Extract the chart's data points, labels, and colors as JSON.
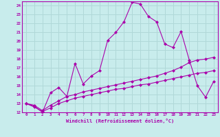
{
  "xlabel": "Windchill (Refroidissement éolien,°C)",
  "bg_color": "#c8ecec",
  "grid_color": "#b0d8d8",
  "line_color": "#aa00aa",
  "spine_color": "#aa00aa",
  "xlim": [
    -0.5,
    23.5
  ],
  "ylim": [
    12,
    24.5
  ],
  "xticks": [
    0,
    1,
    2,
    3,
    4,
    5,
    6,
    7,
    8,
    9,
    10,
    11,
    12,
    13,
    14,
    15,
    16,
    17,
    18,
    19,
    20,
    21,
    22,
    23
  ],
  "yticks": [
    12,
    13,
    14,
    15,
    16,
    17,
    18,
    19,
    20,
    21,
    22,
    23,
    24
  ],
  "line1_x": [
    0,
    1,
    2,
    3,
    4,
    5,
    6,
    7,
    8,
    9,
    10,
    11,
    12,
    13,
    14,
    15,
    16,
    17,
    18,
    19,
    20,
    21,
    22,
    23
  ],
  "line1_y": [
    13.0,
    12.7,
    12.0,
    14.2,
    14.8,
    13.8,
    17.5,
    15.2,
    16.1,
    16.7,
    20.1,
    21.0,
    22.2,
    24.4,
    24.2,
    22.8,
    22.2,
    19.7,
    19.3,
    21.1,
    17.9,
    15.0,
    13.7,
    15.5
  ],
  "line2_x": [
    0,
    1,
    2,
    3,
    4,
    5,
    6,
    7,
    8,
    9,
    10,
    11,
    12,
    13,
    14,
    15,
    16,
    17,
    18,
    19,
    20,
    21,
    22,
    23
  ],
  "line2_y": [
    13.0,
    12.8,
    12.2,
    12.8,
    13.3,
    13.8,
    14.0,
    14.3,
    14.5,
    14.7,
    14.9,
    15.1,
    15.3,
    15.5,
    15.7,
    15.9,
    16.1,
    16.4,
    16.7,
    17.1,
    17.6,
    17.9,
    18.0,
    18.2
  ],
  "line3_x": [
    0,
    1,
    2,
    3,
    4,
    5,
    6,
    7,
    8,
    9,
    10,
    11,
    12,
    13,
    14,
    15,
    16,
    17,
    18,
    19,
    20,
    21,
    22,
    23
  ],
  "line3_y": [
    13.0,
    12.6,
    12.1,
    12.5,
    13.0,
    13.3,
    13.6,
    13.8,
    14.0,
    14.2,
    14.4,
    14.6,
    14.7,
    14.9,
    15.1,
    15.2,
    15.4,
    15.6,
    15.8,
    16.0,
    16.2,
    16.4,
    16.5,
    16.7
  ]
}
